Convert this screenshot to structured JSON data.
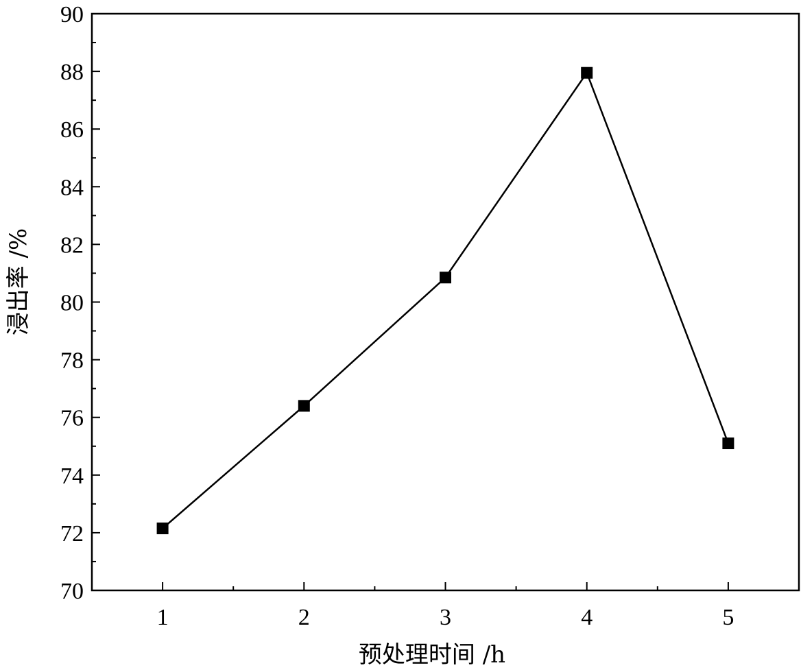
{
  "chart_data": {
    "type": "line",
    "title": "",
    "xlabel": "预处理时间 /h",
    "ylabel": "浸出率 /%",
    "x": [
      1,
      2,
      3,
      4,
      5
    ],
    "series": [
      {
        "values": [
          72.15,
          76.4,
          80.85,
          87.95,
          75.1
        ]
      }
    ],
    "xlim": [
      0.5,
      5.5
    ],
    "ylim": [
      70,
      90
    ],
    "x_ticks": [
      "1",
      "2",
      "3",
      "4",
      "5"
    ],
    "y_ticks": [
      "70",
      "72",
      "74",
      "76",
      "78",
      "80",
      "82",
      "84",
      "86",
      "88",
      "90"
    ],
    "grid": false,
    "marker": "square",
    "color": "#000000"
  }
}
